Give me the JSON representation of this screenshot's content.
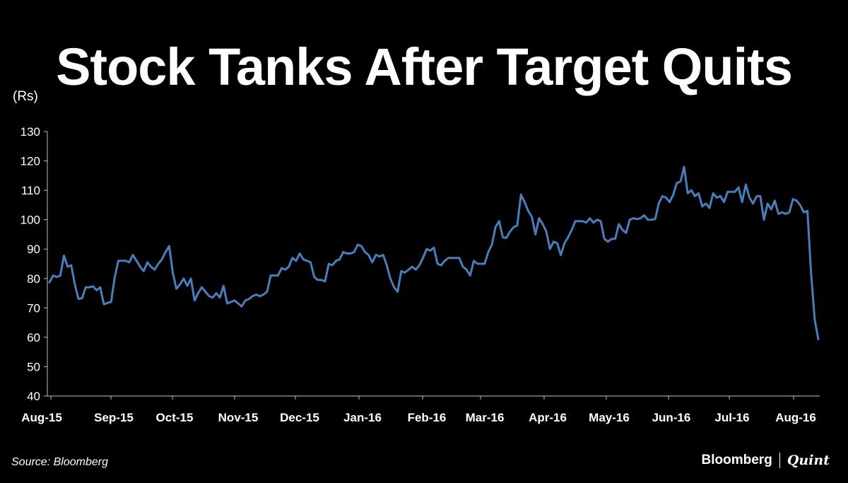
{
  "title": "Stock Tanks After Target Quits",
  "source": "Source: Bloomberg",
  "brand": {
    "left": "Bloomberg",
    "right": "Quint"
  },
  "colors": {
    "background": "#000000",
    "line": "#4a7ebb",
    "text": "#ffffff",
    "axis": "#bfbfbf"
  },
  "chart_data": {
    "type": "line",
    "title": "Stock Tanks After Target Quits",
    "ylabel": "(Rs)",
    "xlabel": "",
    "ylim": [
      40,
      130
    ],
    "yticks": [
      40,
      50,
      60,
      70,
      80,
      90,
      100,
      110,
      120,
      130
    ],
    "xticks": [
      "Aug-15",
      "Sep-15",
      "Oct-15",
      "Nov-15",
      "Dec-15",
      "Jan-16",
      "Feb-16",
      "Mar-16",
      "Apr-16",
      "May-16",
      "Jun-16",
      "Jul-16",
      "Aug-16"
    ],
    "grid": false,
    "legend": "none",
    "series": [
      {
        "values": [
          78.7,
          81,
          80.5,
          81,
          87.8,
          84,
          84.5,
          78,
          73,
          73.3,
          77,
          77,
          77.3,
          76,
          77,
          71.2,
          71.7,
          72,
          80.5,
          86,
          86,
          86,
          85.5,
          88,
          86,
          84,
          82.5,
          85.5,
          84,
          83,
          85,
          86.5,
          89,
          91,
          82,
          76.5,
          78,
          80,
          77.5,
          80,
          72.5,
          75,
          77,
          75.5,
          74,
          73.5,
          75,
          73.5,
          77.5,
          71.5,
          72,
          72.5,
          71.5,
          70.5,
          72.5,
          73,
          74,
          74.5,
          74,
          74.5,
          75.5,
          81,
          81,
          81,
          83.5,
          83,
          84,
          87,
          86,
          88.5,
          86.5,
          86,
          85.5,
          80.5,
          79.5,
          79.5,
          79,
          85,
          84.5,
          86,
          86.5,
          89,
          88.5,
          88.5,
          89,
          91.5,
          91,
          89,
          88,
          85.5,
          88,
          87.5,
          88,
          84.5,
          80,
          77,
          75.5,
          82.5,
          82,
          83,
          84,
          83,
          84.5,
          87,
          90,
          89.5,
          90.5,
          85,
          84.5,
          86,
          87,
          87,
          87,
          87,
          84,
          83,
          81,
          86,
          85,
          85,
          85,
          89,
          91.5,
          97.5,
          99.5,
          94,
          93.8,
          96,
          97.5,
          98,
          108.5,
          106,
          103,
          101,
          95,
          100.5,
          98.5,
          96,
          90,
          92.5,
          92,
          88,
          92,
          94,
          96.5,
          99.5,
          99.5,
          99.5,
          99,
          100.5,
          99,
          100,
          99.5,
          93.5,
          92.5,
          93.5,
          93.5,
          98.5,
          96.5,
          95.5,
          100,
          100.5,
          100.2,
          100.5,
          101.5,
          100,
          100,
          100.2,
          105.5,
          108,
          107.5,
          106,
          108.5,
          112.5,
          113,
          118,
          109,
          110,
          108,
          109,
          104.5,
          105.5,
          104,
          109,
          107.5,
          108,
          106,
          109.5,
          109.5,
          109.5,
          111,
          106,
          112,
          107.5,
          105.5,
          108,
          108,
          100,
          105.5,
          103.5,
          106.5,
          102,
          102.5,
          102,
          102.5,
          107,
          106.5,
          105,
          102.5,
          103,
          82,
          66,
          59.3
        ]
      }
    ]
  }
}
